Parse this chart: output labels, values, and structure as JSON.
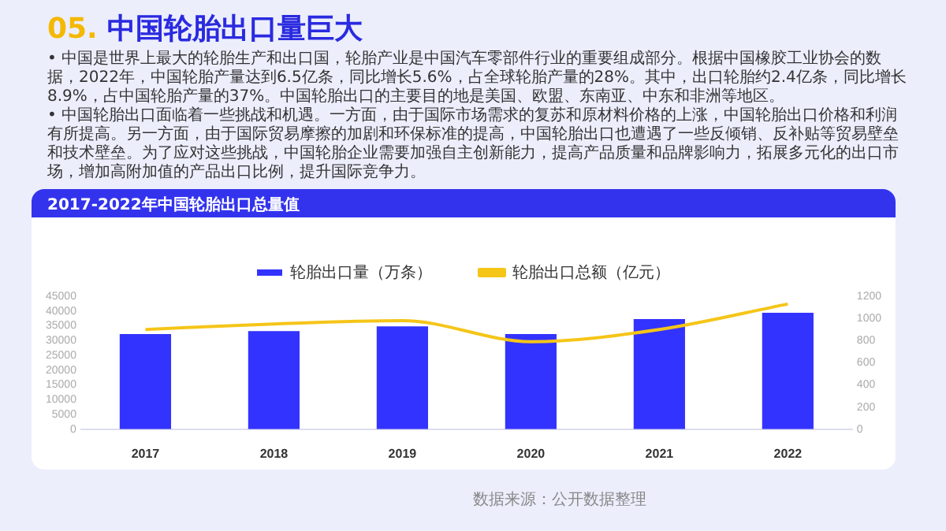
{
  "chart_data": {
    "type": "bar",
    "title": "05. 中国轮胎出口量巨大",
    "subtitle": "2017-2022年中国轮胎出口总量值",
    "annotations": [
      "• 中国是世界上最大的轮胎生产和出口国，轮胎产业是中国汽车零部件行业的重要组成部分。根据中国橡胶工业协会的数据，2022年，中国轮胎产量达到6.5亿条，同比增长5.6%，占全球轮胎产量的28%。其中，出口轮胎约2.4亿条，同比增长8.9%，占中国轮胎产量的37%。中国轮胎出口的主要目的地是美国、欧盟、东南亚、中东和非洲等地区。",
      "• 中国轮胎出口面临着一些挑战和机遇。一方面，由于国际市场需求的复苏和原材料价格的上涨，中国轮胎出口价格和利润有所提高。另一方面，由于国际贸易摩擦的加剧和环保标准的提高，中国轮胎出口也遭遇了一些反倾销、反补贴等贸易壁垒和技术壁垒。为了应对这些挑战，中国轮胎企业需要加强自主创新能力，提高产品质量和品牌影响力，拓展多元化的出口市场，增加高附加值的产品出口比例，提升国际竞争力。",
      "数据来源：公开数据整理"
    ],
    "categories": [
      "2017",
      "2018",
      "2019",
      "2020",
      "2021",
      "2022"
    ],
    "series": [
      {
        "name": "轮胎出口量（万条）",
        "color": "#3333ff",
        "values": [
          32200,
          33200,
          34800,
          32200,
          37300,
          39400
        ]
      },
      {
        "name": "轮胎出口总额（亿元）",
        "type": "line",
        "axis": "y2",
        "color": "#f5c518",
        "values": [
          900,
          950,
          980,
          790,
          900,
          1130
        ]
      }
    ],
    "ylim": [
      0,
      45000
    ],
    "yticks": [
      0,
      5000,
      10000,
      15000,
      20000,
      25000,
      30000,
      35000,
      40000,
      45000
    ],
    "y2lim": [
      0,
      1200
    ],
    "y2ticks": [
      0,
      200,
      400,
      600,
      800,
      1000,
      1200
    ],
    "grid": false,
    "legend": "top",
    "marker": "none"
  }
}
